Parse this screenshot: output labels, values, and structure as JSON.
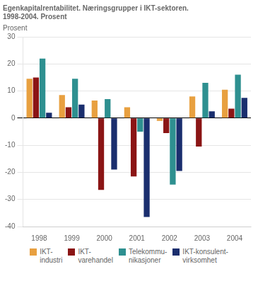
{
  "chart_data": {
    "type": "bar",
    "title": "Egenkapitalrentabilitet. Næringsgrupper i IKT-sektoren.\n1998-2004. Prosent",
    "ylabel": "Prosent",
    "categories": [
      "1998",
      "1999",
      "2000",
      "2001",
      "2002",
      "2003",
      "2004"
    ],
    "series": [
      {
        "name": "IKT-\nindustri",
        "color": "#E8A040",
        "values": [
          14.5,
          8.5,
          6.5,
          4.0,
          -1.0,
          8.0,
          10.5
        ]
      },
      {
        "name": "IKT-\nvarehandel",
        "color": "#8B1515",
        "values": [
          15.0,
          4.0,
          -26.5,
          -21.5,
          -5.5,
          -10.5,
          3.5
        ]
      },
      {
        "name": "Telekommu-\nnikasjoner",
        "color": "#2E9090",
        "values": [
          22.0,
          14.5,
          7.0,
          -5.0,
          -24.5,
          13.0,
          16.0
        ]
      },
      {
        "name": "IKT-konsulent-\nvirksomhet",
        "color": "#1A2E6E",
        "values": [
          2.0,
          5.0,
          -19.0,
          -36.5,
          -19.5,
          2.5,
          7.5
        ]
      }
    ],
    "ylim": [
      -40,
      30
    ],
    "yticks": [
      -40,
      -30,
      -20,
      -10,
      0,
      10,
      20,
      30
    ],
    "grid": true,
    "legend": "bottom"
  }
}
